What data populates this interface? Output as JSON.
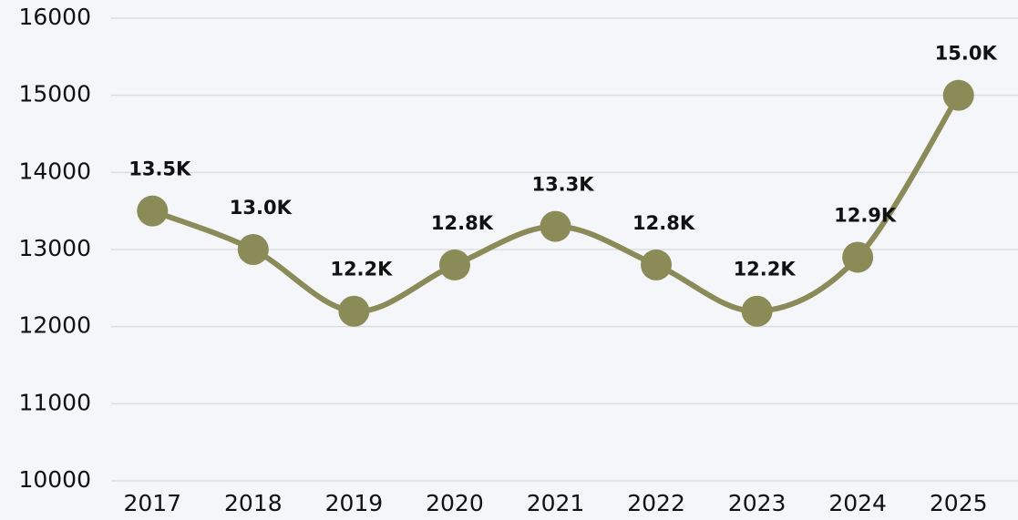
{
  "chart_data": {
    "type": "line",
    "categories": [
      "2017",
      "2018",
      "2019",
      "2020",
      "2021",
      "2022",
      "2023",
      "2024",
      "2025"
    ],
    "values": [
      13500,
      13000,
      12200,
      12800,
      13300,
      12800,
      12200,
      12900,
      15000
    ],
    "value_labels": [
      "13.5K",
      "13.0K",
      "12.2K",
      "12.8K",
      "13.3K",
      "12.8K",
      "12.2K",
      "12.9K",
      "15.0K"
    ],
    "color": "#8b8b57",
    "ylim": [
      10000,
      16000
    ],
    "yticks": [
      10000,
      11000,
      12000,
      13000,
      14000,
      15000,
      16000
    ],
    "grid": true
  }
}
